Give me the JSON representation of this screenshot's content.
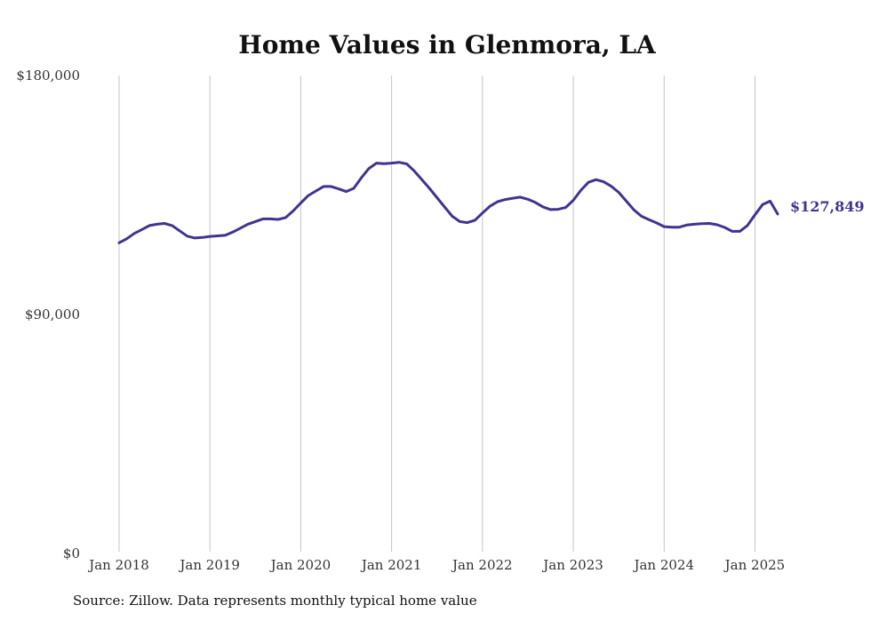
{
  "chart_data": {
    "type": "line",
    "title": "Home Values in Glenmora, LA",
    "xlabel": "",
    "ylabel": "",
    "ylim": [
      0,
      180000
    ],
    "xlim": [
      "2018-01",
      "2025-04"
    ],
    "y_ticks": [
      {
        "value": 0,
        "label": "$0"
      },
      {
        "value": 90000,
        "label": "$90,000"
      },
      {
        "value": 180000,
        "label": "$180,000"
      }
    ],
    "x_ticks": [
      {
        "value": "2018-01",
        "label": "Jan 2018"
      },
      {
        "value": "2019-01",
        "label": "Jan 2019"
      },
      {
        "value": "2020-01",
        "label": "Jan 2020"
      },
      {
        "value": "2021-01",
        "label": "Jan 2021"
      },
      {
        "value": "2022-01",
        "label": "Jan 2022"
      },
      {
        "value": "2023-01",
        "label": "Jan 2023"
      },
      {
        "value": "2024-01",
        "label": "Jan 2024"
      },
      {
        "value": "2025-01",
        "label": "Jan 2025"
      }
    ],
    "grid": {
      "vertical": true,
      "horizontal": false
    },
    "colors": {
      "line": "#3f3590",
      "grid": "#c4c4c4",
      "text": "#333333"
    },
    "end_label": "$127,849",
    "series": [
      {
        "x": [
          "2018-01",
          "2018-02",
          "2018-03",
          "2018-04",
          "2018-05",
          "2018-06",
          "2018-07",
          "2018-08",
          "2018-09",
          "2018-10",
          "2018-11",
          "2018-12",
          "2019-01",
          "2019-02",
          "2019-03",
          "2019-04",
          "2019-05",
          "2019-06",
          "2019-07",
          "2019-08",
          "2019-09",
          "2019-10",
          "2019-11",
          "2019-12",
          "2020-01",
          "2020-02",
          "2020-03",
          "2020-04",
          "2020-05",
          "2020-06",
          "2020-07",
          "2020-08",
          "2020-09",
          "2020-10",
          "2020-11",
          "2020-12",
          "2021-01",
          "2021-02",
          "2021-03",
          "2021-04",
          "2021-05",
          "2021-06",
          "2021-07",
          "2021-08",
          "2021-09",
          "2021-10",
          "2021-11",
          "2021-12",
          "2022-01",
          "2022-02",
          "2022-03",
          "2022-04",
          "2022-05",
          "2022-06",
          "2022-07",
          "2022-08",
          "2022-09",
          "2022-10",
          "2022-11",
          "2022-12",
          "2023-01",
          "2023-02",
          "2023-03",
          "2023-04",
          "2023-05",
          "2023-06",
          "2023-07",
          "2023-08",
          "2023-09",
          "2023-10",
          "2023-11",
          "2023-12",
          "2024-01",
          "2024-02",
          "2024-03",
          "2024-04",
          "2024-05",
          "2024-06",
          "2024-07",
          "2024-08",
          "2024-09",
          "2024-10",
          "2024-11",
          "2024-12",
          "2025-01",
          "2025-02",
          "2025-03",
          "2025-04"
        ],
        "values": [
          117000,
          118500,
          120500,
          122000,
          123500,
          124000,
          124300,
          123500,
          121500,
          119500,
          118800,
          119000,
          119400,
          119600,
          119800,
          121000,
          122500,
          124000,
          125000,
          126000,
          126000,
          125800,
          126500,
          129000,
          132000,
          134800,
          136500,
          138200,
          138200,
          137300,
          136300,
          137500,
          141500,
          145000,
          147000,
          146800,
          147000,
          147300,
          146700,
          144000,
          140800,
          137500,
          134000,
          130500,
          127000,
          125000,
          124600,
          125500,
          128200,
          130800,
          132500,
          133300,
          133800,
          134200,
          133400,
          132200,
          130500,
          129500,
          129600,
          130300,
          133000,
          136800,
          139800,
          140800,
          140000,
          138300,
          136000,
          132700,
          129400,
          127000,
          125700,
          124500,
          123100,
          122900,
          122900,
          123700,
          124000,
          124200,
          124300,
          123800,
          122800,
          121300,
          121300,
          123500,
          127500,
          131400,
          132700,
          127849
        ]
      }
    ]
  },
  "source_text": "Source: Zillow. Data represents monthly typical home value"
}
